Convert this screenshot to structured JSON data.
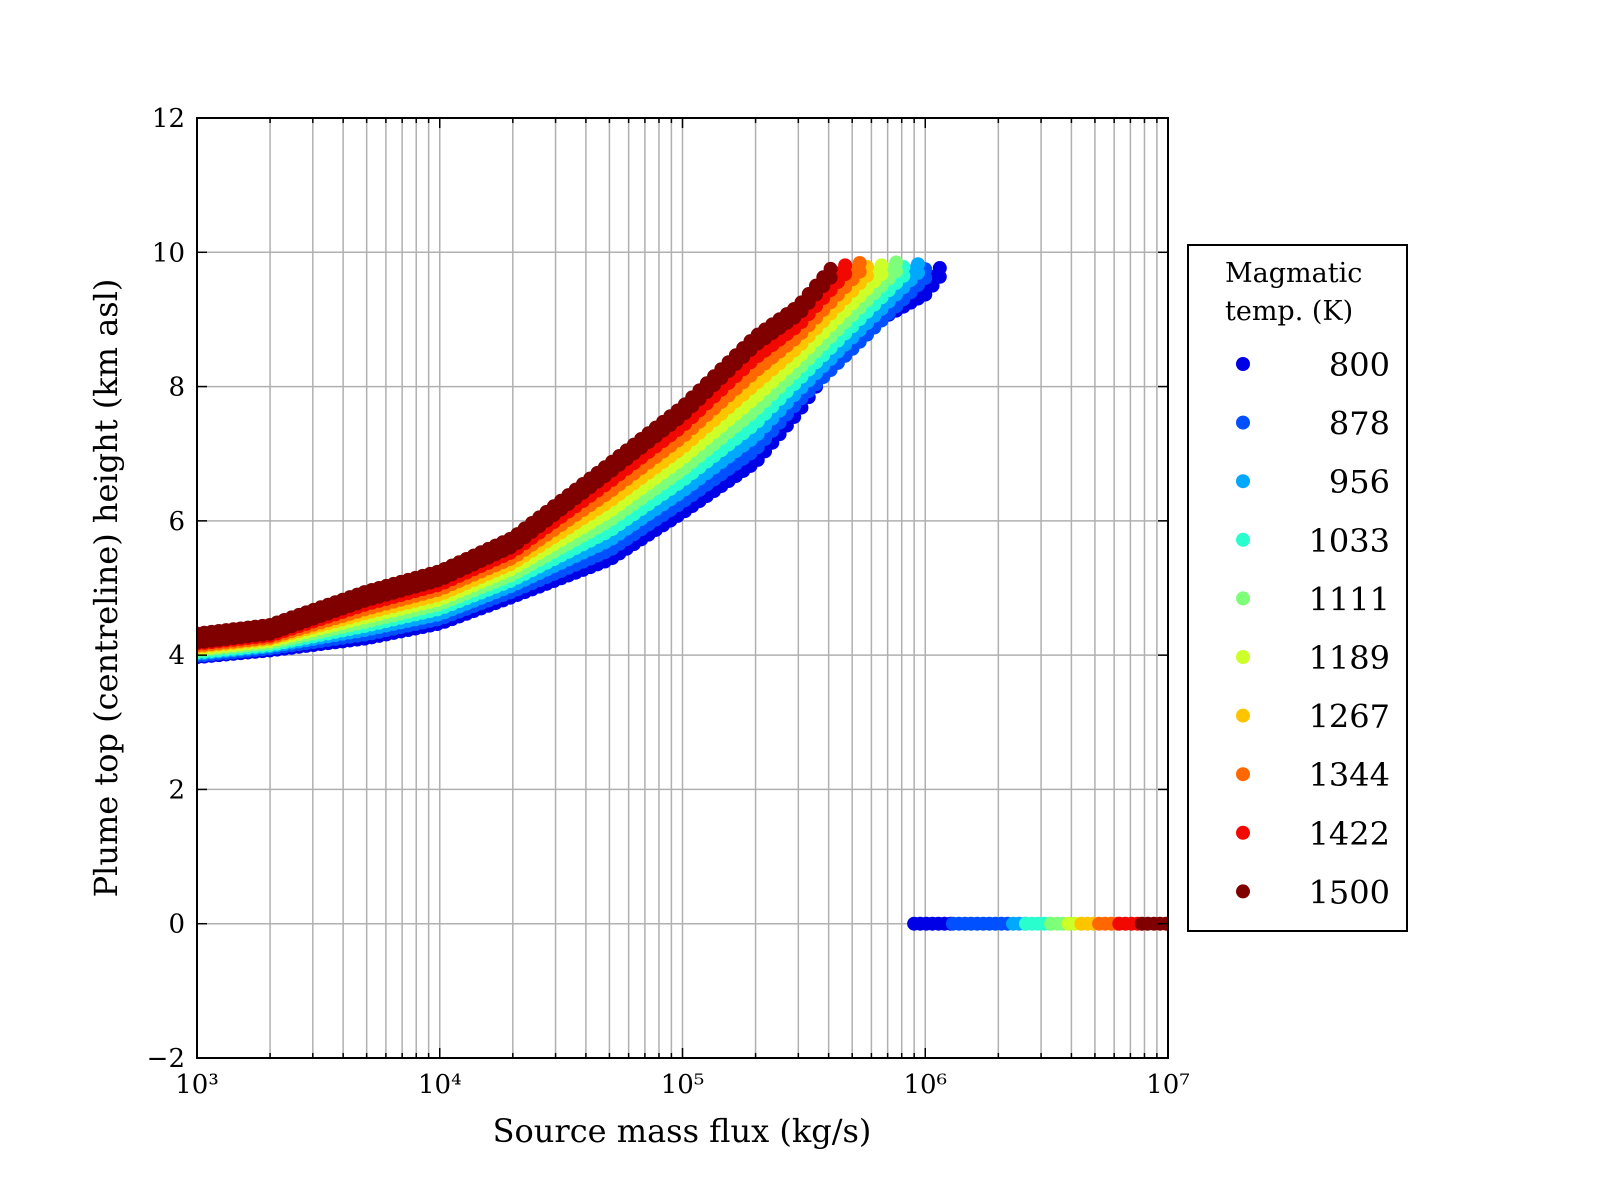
{
  "chart_data": {
    "type": "scatter",
    "title": "",
    "xlabel": "Source mass flux (kg/s)",
    "ylabel": "Plume top (centreline) height (km asl)",
    "xscale": "log",
    "xlim": [
      1000,
      10000000
    ],
    "ylim": [
      -2,
      12
    ],
    "grid": true,
    "x_ticks": [
      1000,
      10000,
      100000,
      1000000,
      10000000
    ],
    "x_tick_labels": [
      "10³",
      "10⁴",
      "10⁵",
      "10⁶",
      "10⁷"
    ],
    "y_ticks": [
      -2,
      0,
      2,
      4,
      6,
      8,
      10,
      12
    ],
    "y_tick_labels": [
      "−2",
      "0",
      "2",
      "4",
      "6",
      "8",
      "10",
      "12"
    ],
    "legend": {
      "title_lines": [
        "Magmatic",
        "temp. (K)"
      ],
      "placement": "right-outside"
    },
    "series": [
      {
        "name": "800",
        "color": "#0000e6",
        "points": [
          [
            1000,
            4.1
          ],
          [
            2000,
            4.2
          ],
          [
            5000,
            4.38
          ],
          [
            10000,
            4.6
          ],
          [
            20000,
            5.0
          ],
          [
            50000,
            5.55
          ],
          [
            100000,
            6.25
          ],
          [
            200000,
            7.0
          ],
          [
            300000,
            7.75
          ],
          [
            500000,
            8.9
          ],
          [
            1000000,
            9.5
          ],
          [
            1200000,
            9.85
          ]
        ],
        "zero_range": [
          900000,
          1300000
        ]
      },
      {
        "name": "878",
        "color": "#0050ff",
        "points": [
          [
            1000,
            4.12
          ],
          [
            2000,
            4.23
          ],
          [
            5000,
            4.44
          ],
          [
            10000,
            4.67
          ],
          [
            20000,
            5.08
          ],
          [
            50000,
            5.69
          ],
          [
            100000,
            6.41
          ],
          [
            200000,
            7.19
          ],
          [
            300000,
            7.91
          ],
          [
            1070000,
            9.85
          ]
        ],
        "zero_range": [
          1300000,
          2300000
        ]
      },
      {
        "name": "956",
        "color": "#00a8ff",
        "points": [
          [
            1000,
            4.15
          ],
          [
            2000,
            4.26
          ],
          [
            5000,
            4.51
          ],
          [
            10000,
            4.74
          ],
          [
            20000,
            5.17
          ],
          [
            50000,
            5.84
          ],
          [
            100000,
            6.57
          ],
          [
            200000,
            7.39
          ],
          [
            300000,
            8.07
          ],
          [
            950000,
            9.85
          ]
        ],
        "zero_range": [
          2300000,
          2600000
        ]
      },
      {
        "name": "1033",
        "color": "#29ffce",
        "points": [
          [
            1000,
            4.17
          ],
          [
            2000,
            4.28
          ],
          [
            5000,
            4.57
          ],
          [
            10000,
            4.82
          ],
          [
            20000,
            5.25
          ],
          [
            50000,
            5.98
          ],
          [
            100000,
            6.73
          ],
          [
            200000,
            7.58
          ],
          [
            300000,
            8.23
          ],
          [
            850000,
            9.85
          ]
        ],
        "zero_range": [
          2600000,
          3300000
        ]
      },
      {
        "name": "1111",
        "color": "#7dff7a",
        "points": [
          [
            1000,
            4.2
          ],
          [
            2000,
            4.31
          ],
          [
            5000,
            4.63
          ],
          [
            10000,
            4.89
          ],
          [
            20000,
            5.33
          ],
          [
            50000,
            6.13
          ],
          [
            100000,
            6.89
          ],
          [
            200000,
            7.78
          ],
          [
            300000,
            8.39
          ],
          [
            760000,
            9.85
          ]
        ],
        "zero_range": [
          3300000,
          3900000
        ]
      },
      {
        "name": "1189",
        "color": "#cdff29",
        "points": [
          [
            1000,
            4.22
          ],
          [
            2000,
            4.34
          ],
          [
            5000,
            4.7
          ],
          [
            10000,
            4.96
          ],
          [
            20000,
            5.42
          ],
          [
            50000,
            6.27
          ],
          [
            100000,
            7.06
          ],
          [
            200000,
            7.97
          ],
          [
            300000,
            8.56
          ],
          [
            680000,
            9.85
          ]
        ],
        "zero_range": [
          3900000,
          4400000
        ]
      },
      {
        "name": "1267",
        "color": "#ffc400",
        "points": [
          [
            1000,
            4.25
          ],
          [
            2000,
            4.37
          ],
          [
            5000,
            4.76
          ],
          [
            10000,
            5.03
          ],
          [
            20000,
            5.5
          ],
          [
            50000,
            6.42
          ],
          [
            100000,
            7.22
          ],
          [
            200000,
            8.17
          ],
          [
            300000,
            8.72
          ],
          [
            600000,
            9.85
          ]
        ],
        "zero_range": [
          4400000,
          5200000
        ]
      },
      {
        "name": "1344",
        "color": "#ff6800",
        "points": [
          [
            1000,
            4.27
          ],
          [
            2000,
            4.39
          ],
          [
            5000,
            4.82
          ],
          [
            10000,
            5.11
          ],
          [
            20000,
            5.58
          ],
          [
            50000,
            6.56
          ],
          [
            100000,
            7.38
          ],
          [
            200000,
            8.36
          ],
          [
            300000,
            8.88
          ],
          [
            540000,
            9.85
          ]
        ],
        "zero_range": [
          5200000,
          6300000
        ]
      },
      {
        "name": "1422",
        "color": "#f10800",
        "points": [
          [
            1000,
            4.3
          ],
          [
            2000,
            4.42
          ],
          [
            5000,
            4.89
          ],
          [
            10000,
            5.18
          ],
          [
            20000,
            5.67
          ],
          [
            50000,
            6.71
          ],
          [
            100000,
            7.54
          ],
          [
            200000,
            8.56
          ],
          [
            300000,
            9.04
          ],
          [
            480000,
            9.85
          ]
        ],
        "zero_range": [
          6300000,
          7800000
        ]
      },
      {
        "name": "1500",
        "color": "#800000",
        "points": [
          [
            1000,
            4.32
          ],
          [
            2000,
            4.45
          ],
          [
            5000,
            4.95
          ],
          [
            10000,
            5.25
          ],
          [
            20000,
            5.75
          ],
          [
            50000,
            6.85
          ],
          [
            100000,
            7.7
          ],
          [
            200000,
            8.75
          ],
          [
            300000,
            9.2
          ],
          [
            430000,
            9.85
          ]
        ],
        "zero_range": [
          7800000,
          10000000
        ]
      }
    ]
  }
}
